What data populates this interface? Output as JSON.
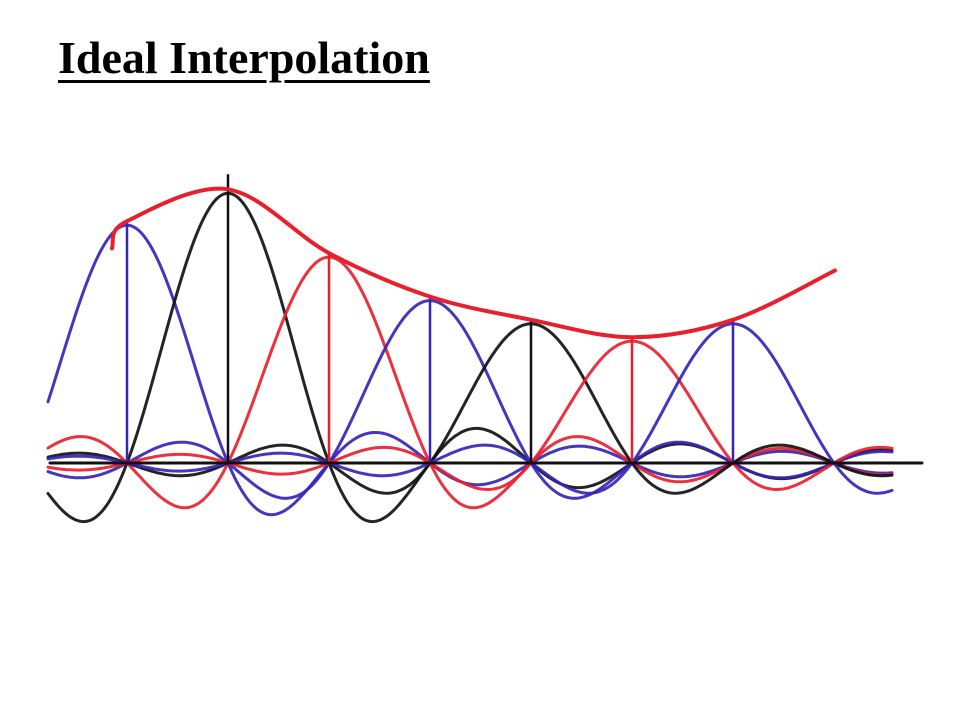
{
  "slide": {
    "title": "Ideal Interpolation"
  },
  "diagram": {
    "description_type": "hand-drawn sinc interpolation",
    "colors": {
      "red": "#e8202c",
      "blue": "#3426b8",
      "black": "#111111",
      "axis": "#111111"
    },
    "samples": [
      {
        "index": 0,
        "color": "blue",
        "height": 0.82
      },
      {
        "index": 1,
        "color": "black",
        "height": 0.93
      },
      {
        "index": 2,
        "color": "red",
        "height": 0.71
      },
      {
        "index": 3,
        "color": "blue",
        "height": 0.56
      },
      {
        "index": 4,
        "color": "black",
        "height": 0.48
      },
      {
        "index": 5,
        "color": "red",
        "height": 0.42
      },
      {
        "index": 6,
        "color": "blue",
        "height": 0.48
      }
    ]
  }
}
